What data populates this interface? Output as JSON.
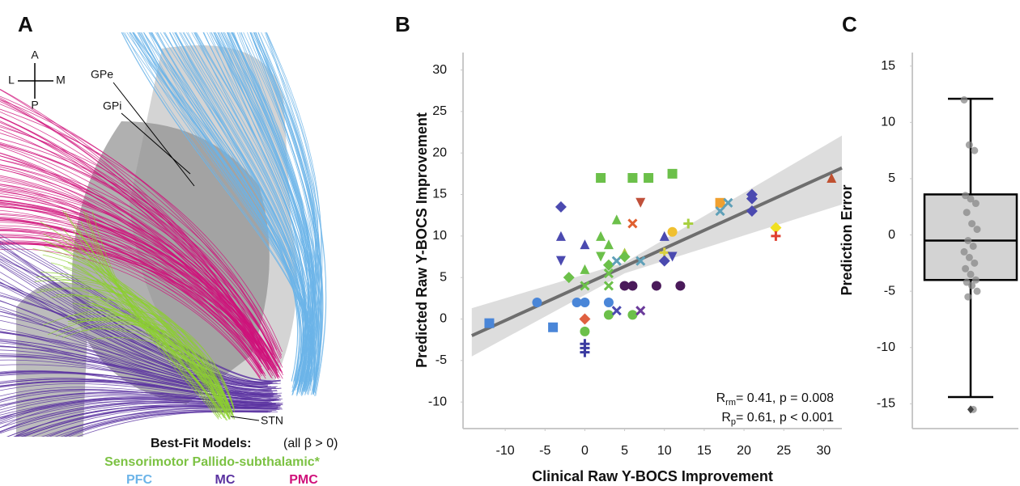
{
  "panel_labels": [
    "A",
    "B",
    "C"
  ],
  "panel_a": {
    "compass": [
      "A",
      "L",
      "M",
      "P"
    ],
    "structures": [
      "GPe",
      "GPi",
      "STN"
    ],
    "legend_title": "Best-Fit Models:",
    "legend_note": "(all β > 0)",
    "sensorimotor": "Sensorimotor Pallido-subthalamic*",
    "tracts": [
      "PFC",
      "MC",
      "PMC"
    ]
  },
  "chart_data": [
    {
      "type": "scatter",
      "xlabel": "Clinical Raw Y-BOCS Improvement",
      "ylabel": "Predicted Raw Y-BOCS Improvement",
      "xlim": [
        -15.3,
        32.3
      ],
      "ylim": [
        -13.2,
        32.1
      ],
      "xticks": [
        -10,
        -5,
        0,
        5,
        10,
        15,
        20,
        25,
        30
      ],
      "yticks": [
        -10,
        -5,
        0,
        5,
        10,
        15,
        20,
        25,
        30
      ],
      "x": [
        -12,
        -4,
        -6,
        -3,
        -3,
        -3,
        -2,
        -1,
        0,
        0,
        0,
        0,
        0,
        0,
        0,
        0,
        0,
        2,
        2,
        2,
        3,
        3,
        3,
        3,
        3,
        3,
        4,
        4,
        4,
        5,
        5,
        5,
        6,
        6,
        6,
        6,
        7,
        7,
        7,
        8,
        9,
        10,
        10,
        10,
        11,
        11,
        11,
        12,
        13,
        17,
        17,
        18,
        21,
        21,
        21,
        24,
        24,
        31
      ],
      "y": [
        -0.5,
        -1,
        2,
        13.5,
        10,
        7,
        5,
        2,
        2,
        9,
        6,
        4,
        0,
        -1.5,
        -3,
        -3.5,
        -4,
        17,
        10,
        7.5,
        9,
        6.5,
        5.5,
        4,
        2,
        0.5,
        12,
        1,
        7,
        8,
        7.5,
        4,
        17,
        11.5,
        4,
        0.5,
        14,
        1,
        7,
        17,
        4,
        10,
        8,
        7,
        7.5,
        17.5,
        10.5,
        4,
        11.5,
        14,
        13,
        14,
        15,
        14.5,
        13,
        11,
        10,
        17
      ],
      "colors": [
        "#4a86d8",
        "#4a86d8",
        "#4a86d8",
        "#4b4ab0",
        "#4b4ab0",
        "#4b4ab0",
        "#6cc04a",
        "#4a86d8",
        "#4a86d8",
        "#4b4ab0",
        "#6cc04a",
        "#6cc04a",
        "#e06040",
        "#6cc04a",
        "#3a3aa0",
        "#3a3aa0",
        "#3a3aa0",
        "#6cc04a",
        "#6cc04a",
        "#6cc04a",
        "#6cc04a",
        "#6cc04a",
        "#6cc04a",
        "#6cc04a",
        "#4a86d8",
        "#6cc04a",
        "#6cc04a",
        "#4b4ab0",
        "#5fa0b8",
        "#a8c840",
        "#6cc04a",
        "#4a1a5a",
        "#6cc04a",
        "#e06030",
        "#4a1a5a",
        "#6cc04a",
        "#c0503a",
        "#6a3a9a",
        "#5fa0b8",
        "#6cc04a",
        "#4a1a5a",
        "#4b4ab0",
        "#d8d040",
        "#4b4ab0",
        "#4b4ab0",
        "#6cc04a",
        "#f0c030",
        "#4a1a5a",
        "#a8d040",
        "#f0a030",
        "#5fa0b8",
        "#5fa0b8",
        "#4b4ab0",
        "#4b4ab0",
        "#4b4ab0",
        "#f0e020",
        "#e04030",
        "#c05030"
      ],
      "markers": [
        "square",
        "square",
        "circle",
        "diamond",
        "triangle",
        "tri-down",
        "diamond",
        "circle",
        "circle",
        "triangle",
        "triangle",
        "x",
        "diamond",
        "circle",
        "plus",
        "plus",
        "plus",
        "square",
        "triangle",
        "tri-down",
        "triangle",
        "diamond",
        "x",
        "x",
        "circle",
        "circle",
        "triangle",
        "x",
        "x",
        "triangle",
        "diamond",
        "circle",
        "square",
        "x",
        "circle",
        "circle",
        "tri-down",
        "x",
        "x",
        "square",
        "circle",
        "triangle",
        "plus",
        "diamond",
        "tri-down",
        "square",
        "circle",
        "circle",
        "plus",
        "square",
        "x",
        "x",
        "diamond",
        "diamond",
        "diamond",
        "diamond",
        "plus",
        "triangle"
      ],
      "fit": {
        "color": "#6e6e6e",
        "x": [
          -14.2,
          32.3
        ],
        "y": [
          -2,
          18.2
        ]
      },
      "band": {
        "color": "#d4d4d4",
        "x": [
          -14.2,
          5,
          32.3
        ],
        "lower": [
          -4.5,
          5.5,
          13.8
        ],
        "upper": [
          1.3,
          6.8,
          22.1
        ]
      },
      "annotations": [
        [
          "R",
          "rm",
          "= 0.41, p = 0.008"
        ],
        [
          "R",
          "p",
          "= 0.61, p < 0.001"
        ]
      ]
    },
    {
      "type": "box",
      "ylabel": "Prediction Error",
      "ylim": [
        -17.2,
        16.2
      ],
      "yticks": [
        -15,
        -10,
        -5,
        0,
        5,
        10,
        15
      ],
      "box": {
        "whisker_low": -14.4,
        "q1": -4,
        "median": -0.5,
        "q3": 3.6,
        "whisker_high": 12.1,
        "color": "#d3d3d3"
      },
      "points": [
        12,
        8,
        7.5,
        3.5,
        3.2,
        2.8,
        2,
        1,
        0.5,
        -0.5,
        -1,
        -1.5,
        -2,
        -2.5,
        -3,
        -3.5,
        -4,
        -4.2,
        -4.5,
        -5,
        -5.5,
        -15.5
      ],
      "outliers": [
        -15.5
      ]
    }
  ]
}
